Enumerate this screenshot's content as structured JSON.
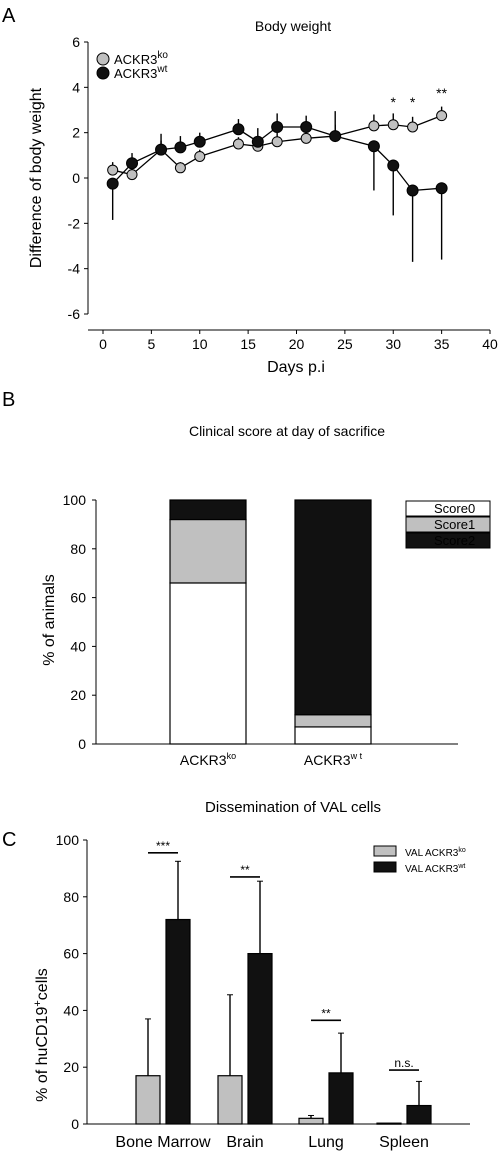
{
  "panel_labels": [
    "A",
    "B",
    "C"
  ],
  "chart_data": [
    {
      "type": "line",
      "title": "Body weight",
      "xlabel": "Days p.i",
      "ylabel": "Difference of body weight",
      "xlim": [
        0,
        40
      ],
      "ylim": [
        -6,
        6
      ],
      "xticks": [
        "0",
        "5",
        "10",
        "15",
        "20",
        "25",
        "30",
        "35",
        "40"
      ],
      "yticks": [
        "-6",
        "-4",
        "-2",
        "0",
        "2",
        "4",
        "6"
      ],
      "legend_placement": "top-left",
      "series": [
        {
          "name": "ACKR3",
          "name_sup": "ko",
          "color": "#c0c0c0",
          "x": [
            1,
            3,
            6,
            8,
            10,
            14,
            16,
            18,
            21,
            24,
            28,
            30,
            32,
            35
          ],
          "y": [
            0.35,
            0.15,
            1.25,
            0.45,
            0.95,
            1.5,
            1.4,
            1.6,
            1.75,
            1.85,
            2.3,
            2.35,
            2.25,
            2.75
          ],
          "err": [
            0.35,
            0.25,
            0.4,
            0.25,
            0.3,
            0.3,
            0.3,
            0.4,
            0.45,
            0.5,
            0.5,
            0.5,
            0.45,
            0.4
          ]
        },
        {
          "name": "ACKR3",
          "name_sup": "wt",
          "color": "#111111",
          "x": [
            1,
            3,
            6,
            8,
            10,
            14,
            16,
            18,
            21,
            24,
            28,
            30,
            32,
            35
          ],
          "y": [
            -0.25,
            0.65,
            1.25,
            1.35,
            1.6,
            2.15,
            1.6,
            2.25,
            2.25,
            1.85,
            1.4,
            0.55,
            -0.55,
            -0.45
          ],
          "err": [
            1.6,
            0.45,
            0.7,
            0.5,
            0.4,
            0.45,
            0.6,
            0.6,
            0.5,
            1.1,
            1.95,
            2.2,
            3.15,
            3.15
          ]
        }
      ],
      "annotations": [
        {
          "x": 30,
          "y": 3.3,
          "text": "*"
        },
        {
          "x": 32,
          "y": 3.3,
          "text": "*"
        },
        {
          "x": 35,
          "y": 3.7,
          "text": "**"
        }
      ]
    },
    {
      "type": "bar",
      "stacked": true,
      "title": "Clinical score at day of sacrifice",
      "xlabel": "",
      "ylabel": "% of animals",
      "ylim": [
        0,
        100
      ],
      "yticks": [
        "0",
        "20",
        "40",
        "60",
        "80",
        "100"
      ],
      "categories": [
        {
          "name": "ACKR3",
          "sup": "ko"
        },
        {
          "name": "ACKR3",
          "sup": "w t"
        }
      ],
      "legend_placement": "top-right",
      "series": [
        {
          "name": "Score0",
          "color": "#ffffff",
          "values": [
            66,
            7
          ]
        },
        {
          "name": "Score1",
          "color": "#c0c0c0",
          "values": [
            26,
            5
          ]
        },
        {
          "name": "Score2",
          "color": "#111111",
          "values": [
            8,
            88
          ]
        }
      ]
    },
    {
      "type": "bar",
      "title": "Dissemination of VAL cells",
      "xlabel": "",
      "ylabel": "% of huCD19",
      "ylabel_sup": "+",
      "ylabel_suffix": "cells",
      "ylim": [
        0,
        100
      ],
      "yticks": [
        "0",
        "20",
        "40",
        "60",
        "80",
        "100"
      ],
      "categories": [
        "Bone Marrow",
        "Brain",
        "Lung",
        "Spleen"
      ],
      "legend_placement": "top-right",
      "series": [
        {
          "name": "VAL ACKR3",
          "name_sup": "ko",
          "color": "#c0c0c0",
          "values": [
            17,
            17,
            2,
            0.3
          ],
          "err": [
            20,
            28.5,
            1,
            0
          ]
        },
        {
          "name": "VAL ACKR3",
          "name_sup": "wt",
          "color": "#111111",
          "values": [
            72,
            60,
            18,
            6.5
          ],
          "err": [
            20.5,
            25.5,
            14,
            8.5
          ]
        }
      ],
      "significance": [
        "***",
        "**",
        "**",
        "n.s."
      ]
    }
  ]
}
